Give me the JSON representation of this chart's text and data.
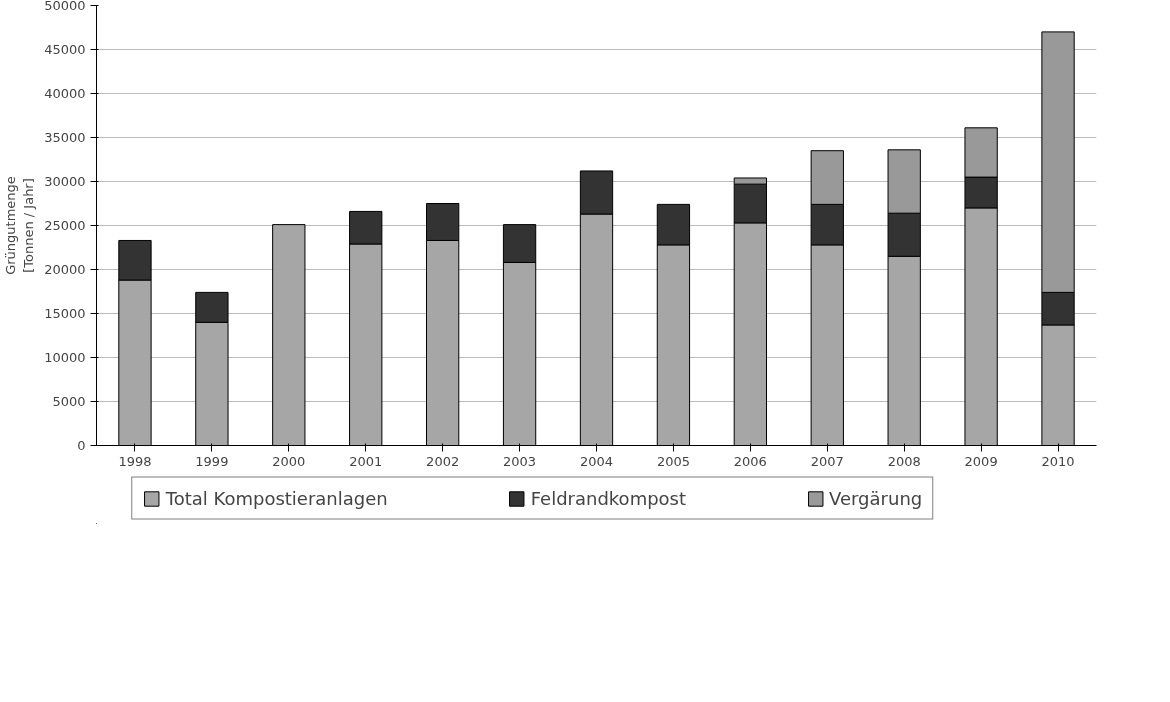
{
  "chart_data": {
    "type": "bar",
    "stacked": true,
    "ylabel": "Grüngutmenge\n[Tonnen / Jahr]",
    "categories": [
      "1998",
      "1999",
      "2000",
      "2001",
      "2002",
      "2003",
      "2004",
      "2005",
      "2006",
      "2007",
      "2008",
      "2009",
      "2010"
    ],
    "series": [
      {
        "name": "Total Kompostieranlagen",
        "color": "#a6a6a6",
        "values": [
          18800,
          14000,
          25100,
          22900,
          23300,
          20800,
          26300,
          22800,
          25300,
          22800,
          21500,
          27000,
          13700
        ]
      },
      {
        "name": "Feldrandkompost",
        "color": "#333333",
        "values": [
          4500,
          3400,
          0,
          3700,
          4200,
          4300,
          4900,
          4600,
          4400,
          4600,
          4900,
          3500,
          3700
        ]
      },
      {
        "name": "Vergärung",
        "color": "#999999",
        "values": [
          0,
          0,
          0,
          0,
          0,
          0,
          0,
          0,
          700,
          6100,
          7200,
          5600,
          29600
        ]
      }
    ],
    "ylim": [
      0,
      50000
    ],
    "yticks": [
      0,
      5000,
      10000,
      15000,
      20000,
      25000,
      30000,
      35000,
      40000,
      45000,
      50000
    ],
    "grid": "y",
    "legend": "bottom"
  }
}
